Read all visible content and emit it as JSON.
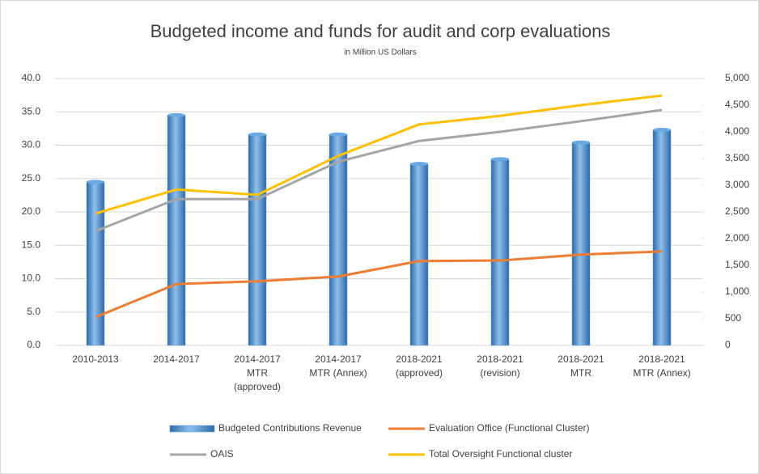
{
  "chart_data": {
    "type": "bar_line",
    "title": "Budgeted income and funds for audit and corp evaluations",
    "subtitle": "in Million US Dollars",
    "categories": [
      "2010-2013",
      "2014-2017",
      "2014-2017 MTR (approved)",
      "2014-2017 MTR (Annex)",
      "2018-2021 (approved)",
      "2018-2021 (revision)",
      "2018-2021 MTR",
      "2018-2021 MTR (Annex)"
    ],
    "series": [
      {
        "name": "Budgeted Contributions Revenue",
        "type": "bar",
        "color": "#5b9bd5",
        "values": [
          24.5,
          34.5,
          31.6,
          31.6,
          27.2,
          27.9,
          30.4,
          32.3
        ]
      },
      {
        "name": "Evaluation Office (Functional Cluster)",
        "type": "line",
        "axis": "y2",
        "color": "#ed7d31",
        "values": [
          530,
          1150,
          1200,
          1290,
          1580,
          1590,
          1700,
          1760
        ]
      },
      {
        "name": "OAIS",
        "type": "line",
        "axis": "y2",
        "color": "#a5a5a5",
        "values": [
          2140,
          2740,
          2740,
          3440,
          3830,
          4000,
          4200,
          4410
        ]
      },
      {
        "name": "Total Oversight Functional cluster",
        "type": "line",
        "axis": "y2",
        "color": "#ffc000",
        "values": [
          2470,
          2920,
          2820,
          3550,
          4140,
          4300,
          4500,
          4680
        ]
      }
    ],
    "ylim": [
      0,
      40
    ],
    "yticks": [
      {
        "value": 0,
        "label": "0.0"
      },
      {
        "value": 5,
        "label": "5.0"
      },
      {
        "value": 10,
        "label": "10.0"
      },
      {
        "value": 15,
        "label": "15.0"
      },
      {
        "value": 20,
        "label": "20.0"
      },
      {
        "value": 25,
        "label": "25.0"
      },
      {
        "value": 30,
        "label": "30.0"
      },
      {
        "value": 35,
        "label": "35.0"
      },
      {
        "value": 40,
        "label": "40.0"
      }
    ],
    "y2lim": [
      0,
      5000
    ],
    "y2ticks": [
      0,
      500,
      {
        "value": 1000,
        "label": "1,000"
      },
      {
        "value": 1500,
        "label": "1,500"
      },
      {
        "value": 2000,
        "label": "2,000"
      },
      {
        "value": 2500,
        "label": "2,500"
      },
      {
        "value": 3000,
        "label": "3,000"
      },
      {
        "value": 3500,
        "label": "3,500"
      },
      {
        "value": 4000,
        "label": "4,000"
      },
      {
        "value": 4500,
        "label": "4,500"
      },
      {
        "value": 5000,
        "label": "5,000"
      }
    ],
    "grid": true,
    "legend": "bottom"
  }
}
